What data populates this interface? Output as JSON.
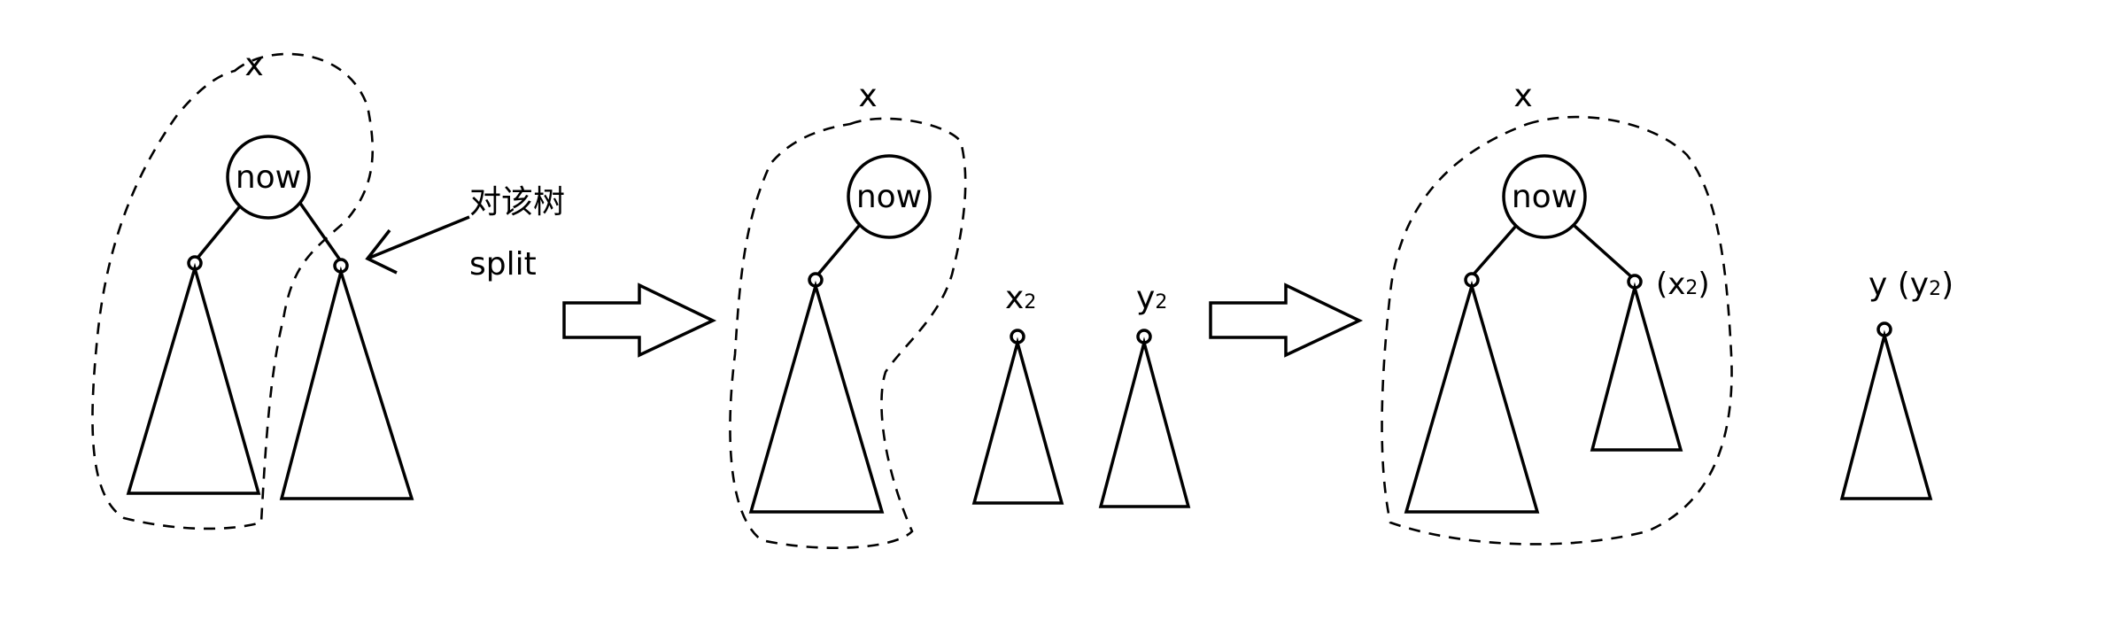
{
  "labels": {
    "now": "now",
    "x": "x",
    "split_line1": "对该树",
    "split_line2": "split",
    "x2": "x",
    "x2_sub": "2",
    "y2": "y",
    "y2_sub": "2",
    "paren_x2_open": "(x",
    "paren_x2_sub": "2",
    "paren_x2_close": ")",
    "y_main": "y (y",
    "y_main_sub": "2",
    "y_main_close": ")"
  }
}
